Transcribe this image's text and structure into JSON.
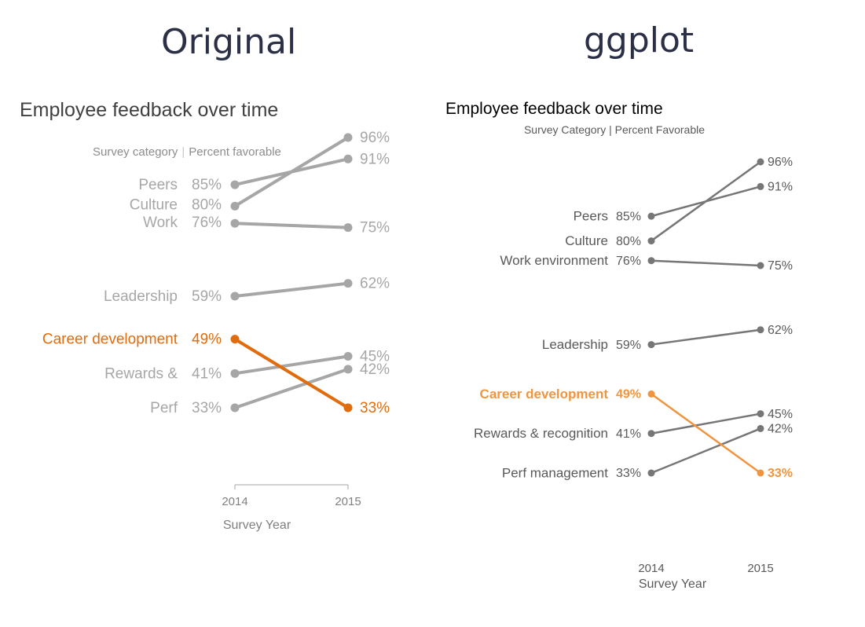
{
  "headings": {
    "left": "Original",
    "right": "ggplot"
  },
  "chart_data": [
    {
      "type": "line",
      "panel": "Original",
      "title": "Employee feedback over time",
      "subtitle_left": "Survey category",
      "subtitle_sep": "|",
      "subtitle_right": "Percent favorable",
      "xlabel": "Survey Year",
      "x": [
        "2014",
        "2015"
      ],
      "ylim": [
        25,
        100
      ],
      "grid": false,
      "colors": {
        "base": "#a6a6a6",
        "highlight": "#e06c0e",
        "text": "#a6a6a6",
        "axis": "#7f7f7f",
        "title": "#404040"
      },
      "highlight": "Career development",
      "series": [
        {
          "name": "Peers",
          "values": [
            85,
            91
          ],
          "start_label": "85%",
          "end_label": "91%"
        },
        {
          "name": "Culture",
          "values": [
            80,
            96
          ],
          "start_label": "80%",
          "end_label": "96%"
        },
        {
          "name": "Work",
          "values": [
            76,
            75
          ],
          "start_label": "76%",
          "end_label": "75%"
        },
        {
          "name": "Leadership",
          "values": [
            59,
            62
          ],
          "start_label": "59%",
          "end_label": "62%"
        },
        {
          "name": "Career development",
          "values": [
            49,
            33
          ],
          "start_label": "49%",
          "end_label": "33%"
        },
        {
          "name": "Rewards &",
          "values": [
            41,
            45
          ],
          "start_label": "41%",
          "end_label": "45%"
        },
        {
          "name": "Perf",
          "values": [
            33,
            42
          ],
          "start_label": "33%",
          "end_label": "42%"
        }
      ]
    },
    {
      "type": "line",
      "panel": "ggplot",
      "title": "Employee feedback over time",
      "subtitle": "Survey Category | Percent Favorable",
      "xlabel": "Survey Year",
      "x": [
        "2014",
        "2015"
      ],
      "ylim": [
        25,
        100
      ],
      "grid": false,
      "colors": {
        "base": "#767676",
        "highlight": "#f0953f",
        "text": "#595959",
        "title": "#000000"
      },
      "highlight": "Career development",
      "series": [
        {
          "name": "Peers",
          "values": [
            85,
            91
          ],
          "start_label": "85%",
          "end_label": "91%"
        },
        {
          "name": "Culture",
          "values": [
            80,
            96
          ],
          "start_label": "80%",
          "end_label": "96%"
        },
        {
          "name": "Work environment",
          "values": [
            76,
            75
          ],
          "start_label": "76%",
          "end_label": "75%"
        },
        {
          "name": "Leadership",
          "values": [
            59,
            62
          ],
          "start_label": "59%",
          "end_label": "62%"
        },
        {
          "name": "Career development",
          "values": [
            49,
            33
          ],
          "start_label": "49%",
          "end_label": "33%"
        },
        {
          "name": "Rewards & recognition",
          "values": [
            41,
            45
          ],
          "start_label": "41%",
          "end_label": "45%"
        },
        {
          "name": "Perf management",
          "values": [
            33,
            42
          ],
          "start_label": "33%",
          "end_label": "42%"
        }
      ]
    }
  ]
}
